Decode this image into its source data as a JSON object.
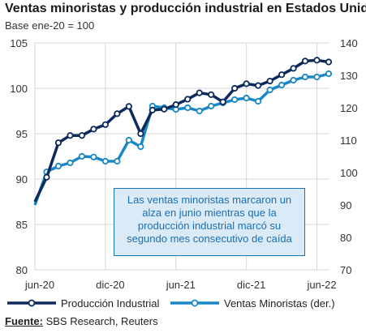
{
  "title": "Ventas minoristas y producción industrial en Estados Unidos",
  "subtitle": "Base ene-20 = 100",
  "annotation": "Las ventas minoristas marcaron un alza en junio mientras que la producción industrial marcó su segundo mes consecutivo de caída",
  "source_label": "Fuente:",
  "source_text": " SBS Research, Reuters",
  "colors": {
    "production": "#0d2a5c",
    "retail": "#1a87c9",
    "grid": "#d6d6d6"
  },
  "chart_data": {
    "type": "line",
    "x_tick_labels": [
      "jun-20",
      "dic-20",
      "jun-21",
      "dic-21",
      "jun-22"
    ],
    "y_left": {
      "ticks": [
        80,
        85,
        90,
        95,
        100,
        105
      ],
      "range": [
        80,
        105
      ]
    },
    "y_right": {
      "ticks": [
        70,
        80,
        90,
        100,
        110,
        120,
        130,
        140
      ],
      "range": [
        70,
        140
      ]
    },
    "grid": true,
    "legend_position": "bottom",
    "series": [
      {
        "name": "Producción Industrial",
        "axis": "left",
        "values": [
          87.5,
          90.2,
          94.0,
          94.8,
          94.8,
          95.5,
          96.0,
          97.2,
          98.0,
          95.0,
          97.6,
          97.7,
          98.2,
          98.8,
          99.5,
          99.3,
          98.5,
          100.0,
          100.5,
          100.3,
          100.8,
          101.5,
          102.2,
          103.0,
          103.1,
          102.9
        ]
      },
      {
        "name": "Ventas Minoristas (der.)",
        "axis": "right",
        "values": [
          90,
          100.2,
          102,
          103,
          105,
          104.8,
          103.5,
          103.5,
          110,
          108,
          120.5,
          120,
          119.5,
          120,
          119,
          120.5,
          121.5,
          122.5,
          123,
          122,
          125.5,
          127,
          128.5,
          129.5,
          129.5,
          130.5
        ]
      }
    ]
  }
}
